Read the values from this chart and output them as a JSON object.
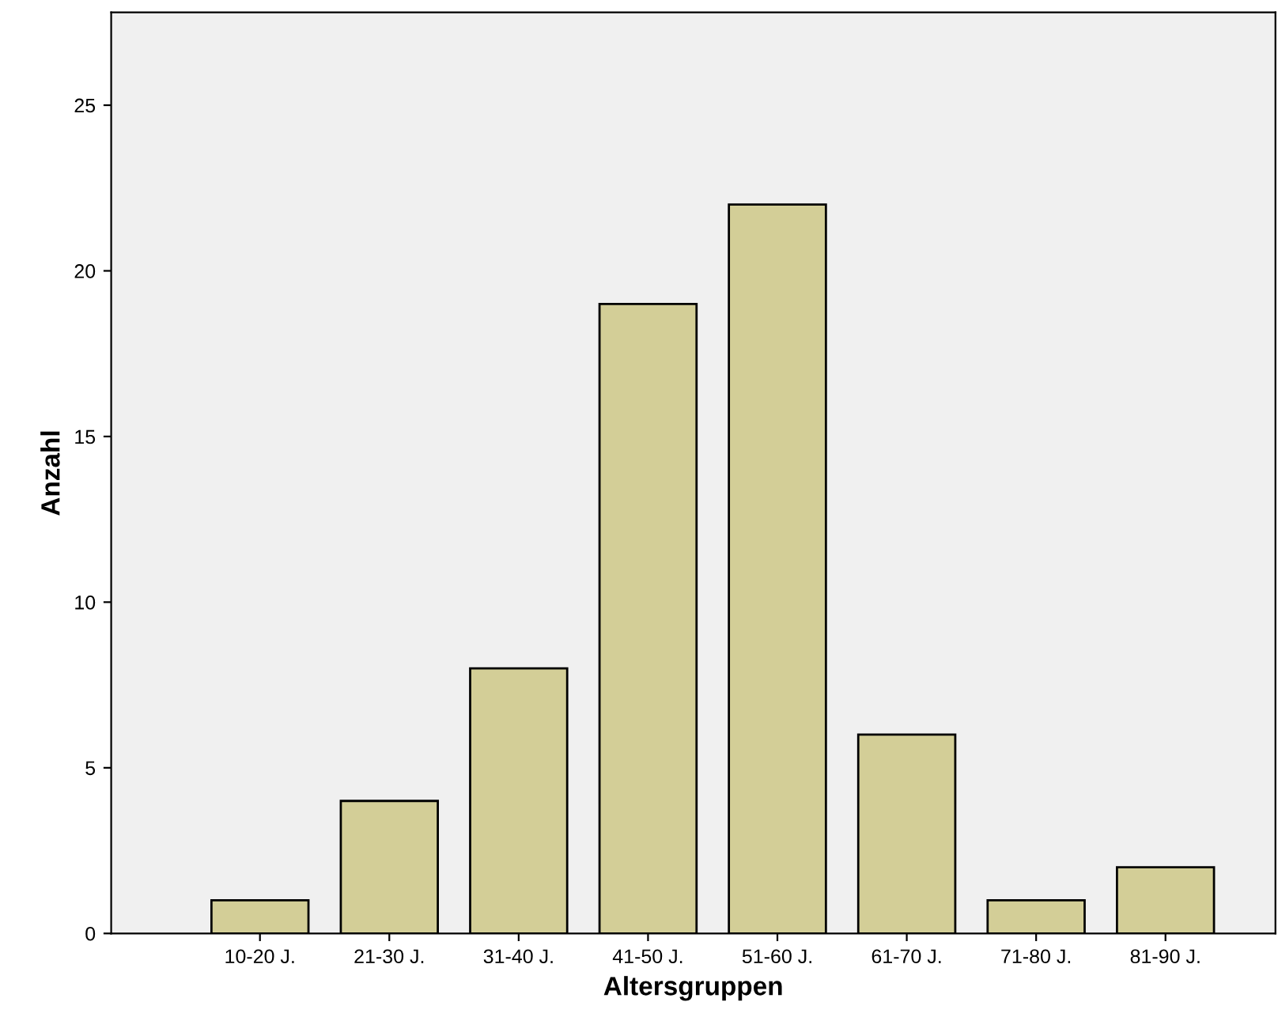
{
  "chart_data": {
    "type": "bar",
    "xlabel": "Altersgruppen",
    "ylabel": "Anzahl",
    "categories": [
      "10-20 J.",
      "21-30 J.",
      "31-40 J.",
      "41-50 J.",
      "51-60 J.",
      "61-70 J.",
      "71-80 J.",
      "81-90 J."
    ],
    "values": [
      1,
      4,
      8,
      19,
      22,
      6,
      1,
      2
    ],
    "color": "#d3ce97",
    "ylim": [
      0,
      27.8
    ],
    "yticks": [
      0,
      5,
      10,
      15,
      20,
      25
    ],
    "grid": false
  }
}
